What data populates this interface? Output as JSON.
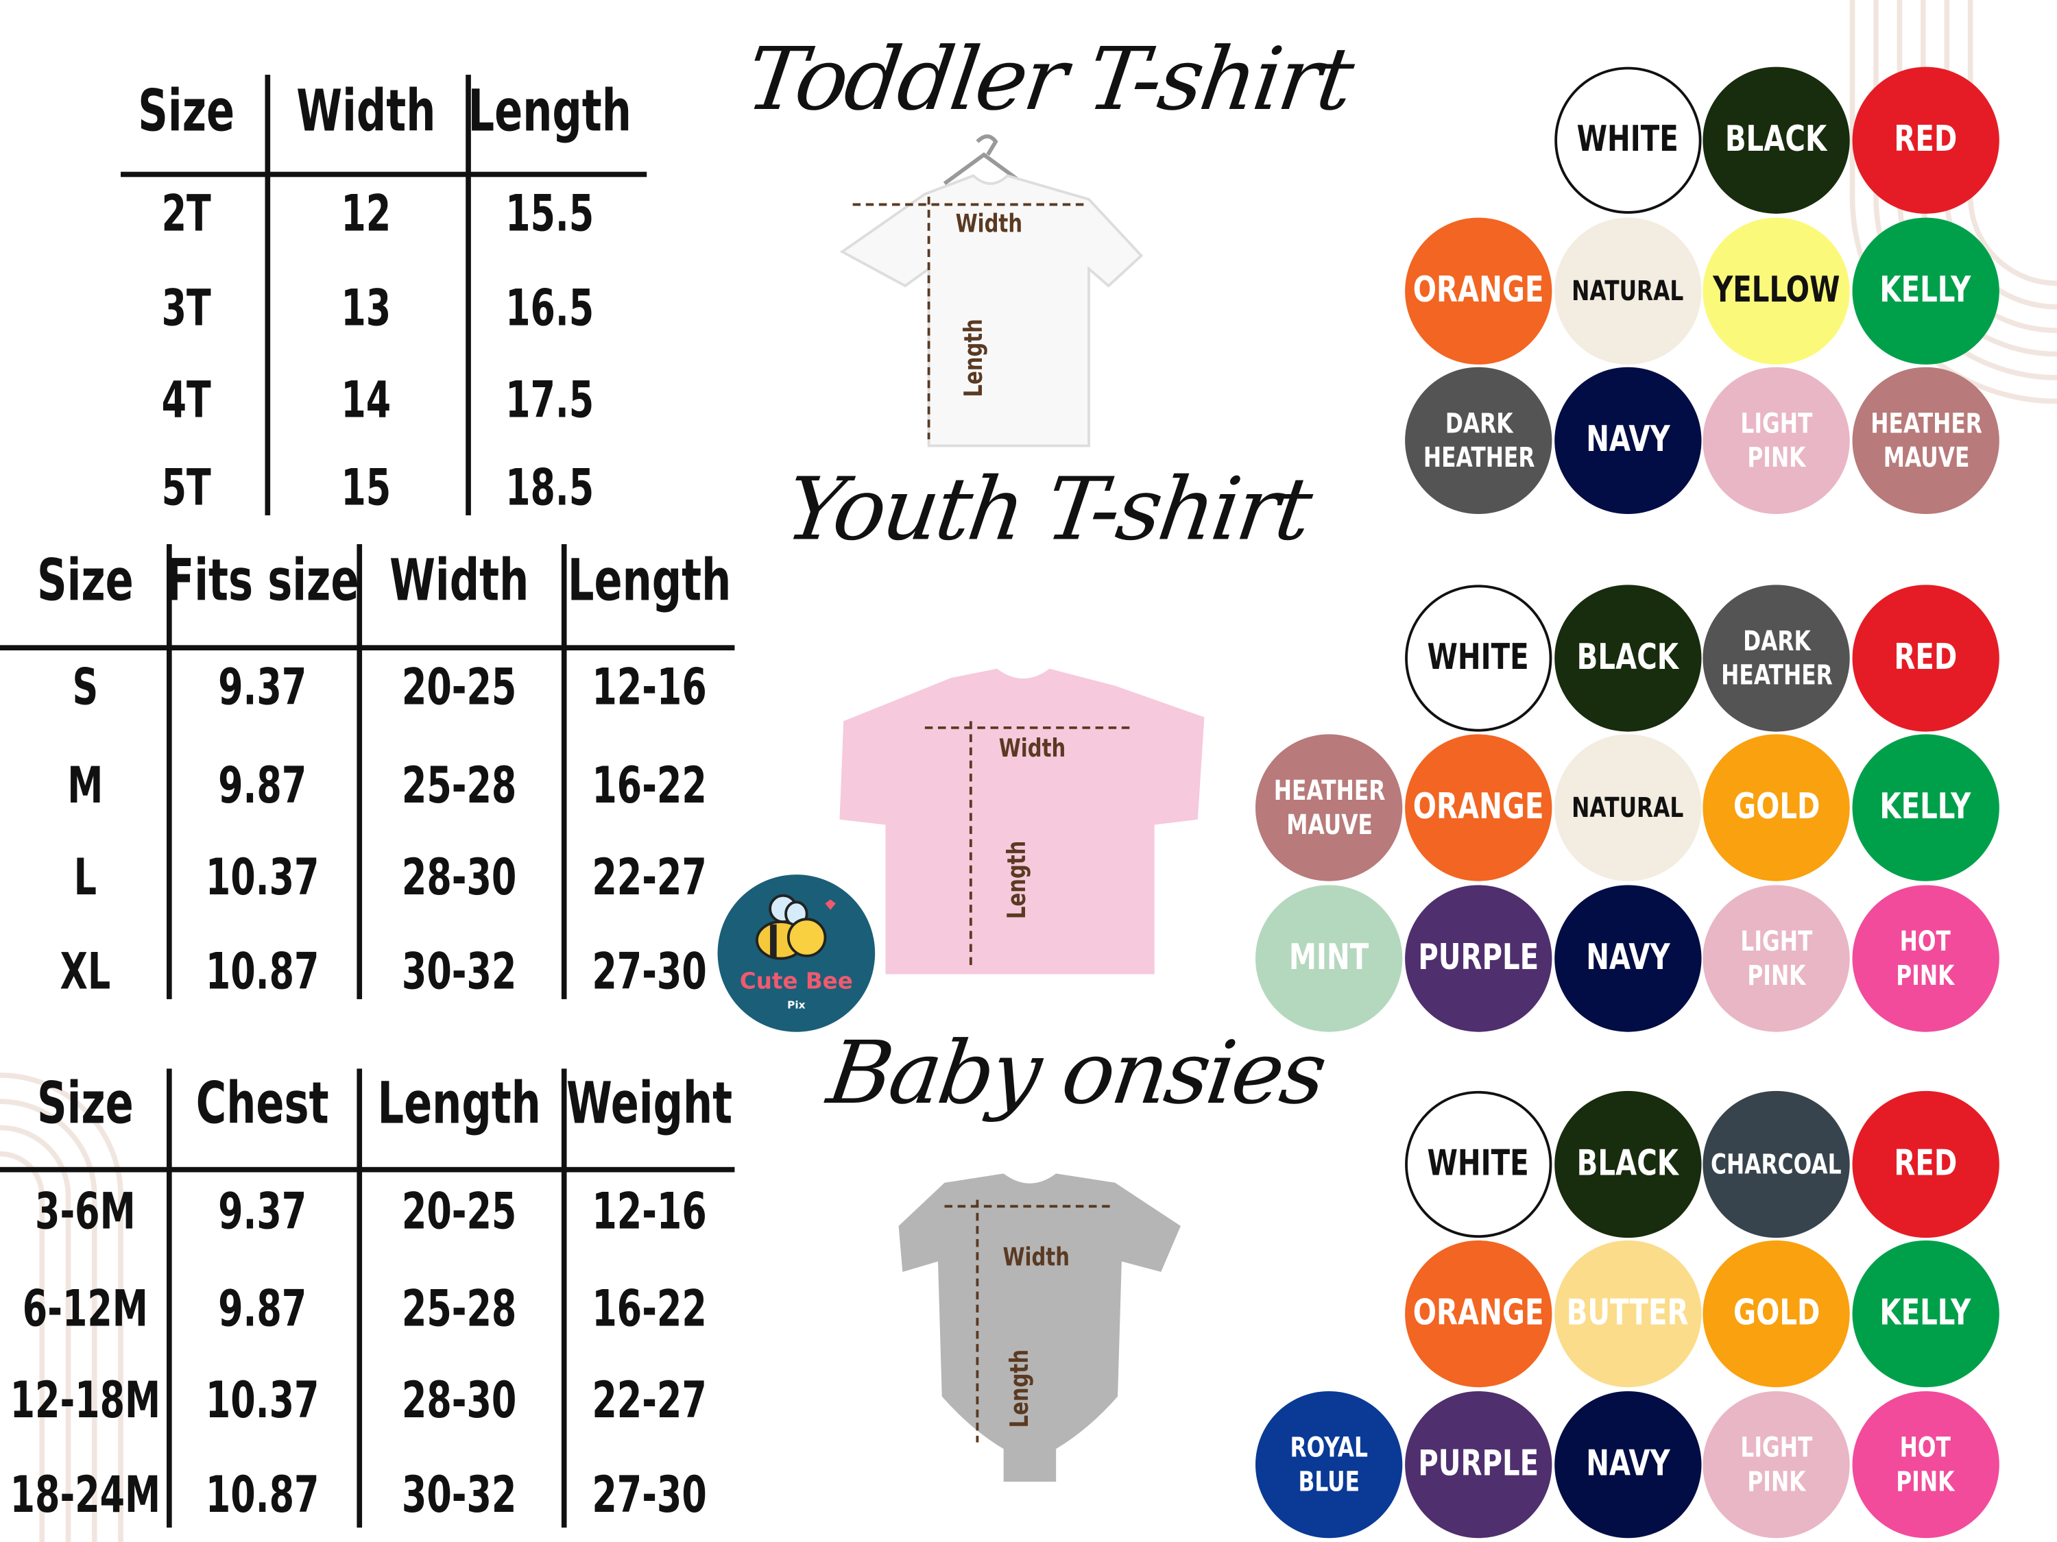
{
  "tables": [
    {
      "id": "toddler",
      "headers": [
        "Size",
        "Width",
        "Length"
      ],
      "rows": [
        [
          "2T",
          "12",
          "15.5"
        ],
        [
          "3T",
          "13",
          "16.5"
        ],
        [
          "4T",
          "14",
          "17.5"
        ],
        [
          "5T",
          "15",
          "18.5"
        ]
      ]
    },
    {
      "id": "youth",
      "headers": [
        "Size",
        "Fits size",
        "Width",
        "Length"
      ],
      "rows": [
        [
          "S",
          "9.37",
          "20-25",
          "12-16"
        ],
        [
          "M",
          "9.87",
          "25-28",
          "16-22"
        ],
        [
          "L",
          "10.37",
          "28-30",
          "22-27"
        ],
        [
          "XL",
          "10.87",
          "30-32",
          "27-30"
        ]
      ]
    },
    {
      "id": "baby",
      "headers": [
        "Size",
        "Chest",
        "Length",
        "Weight"
      ],
      "rows": [
        [
          "3-6M",
          "9.37",
          "20-25",
          "12-16"
        ],
        [
          "6-12M",
          "9.87",
          "25-28",
          "16-22"
        ],
        [
          "12-18M",
          "10.37",
          "28-30",
          "22-27"
        ],
        [
          "18-24M",
          "10.87",
          "30-32",
          "27-30"
        ]
      ]
    }
  ],
  "titles": {
    "toddler": "Toddler T-shirt",
    "youth": "Youth T-shirt",
    "baby": "Baby onsies"
  },
  "garment_labels": {
    "width": "Width",
    "length": "Length"
  },
  "logo": {
    "name": "Cute Bee",
    "sub": "Pix",
    "bg": "#1b5e78",
    "text_color": "#ef5a6f"
  },
  "palettes": [
    {
      "id": "toddler",
      "colors": [
        {
          "label": "WHITE",
          "bg": "#ffffff",
          "fg": "#111111",
          "border": "#111111"
        },
        {
          "label": "BLACK",
          "bg": "#182c0e",
          "fg": "#ffffff"
        },
        {
          "label": "RED",
          "bg": "#e51c26",
          "fg": "#ffffff"
        },
        {
          "label": "ORANGE",
          "bg": "#f26522",
          "fg": "#ffffff"
        },
        {
          "label": "NATURAL",
          "bg": "#f3ece0",
          "fg": "#111111"
        },
        {
          "label": "YELLOW",
          "bg": "#fbf97a",
          "fg": "#111111"
        },
        {
          "label": "KELLY",
          "bg": "#00a04b",
          "fg": "#ffffff"
        },
        {
          "label": "DARK\nHEATHER",
          "bg": "#545454",
          "fg": "#ffffff"
        },
        {
          "label": "NAVY",
          "bg": "#020d45",
          "fg": "#ffffff"
        },
        {
          "label": "LIGHT\nPINK",
          "bg": "#e9b6c6",
          "fg": "#ffffff"
        },
        {
          "label": "HEATHER\nMAUVE",
          "bg": "#b87a7a",
          "fg": "#ffffff"
        }
      ]
    },
    {
      "id": "youth",
      "colors": [
        {
          "label": "WHITE",
          "bg": "#ffffff",
          "fg": "#111111",
          "border": "#111111"
        },
        {
          "label": "BLACK",
          "bg": "#182c0e",
          "fg": "#ffffff"
        },
        {
          "label": "DARK\nHEATHER",
          "bg": "#545454",
          "fg": "#ffffff"
        },
        {
          "label": "RED",
          "bg": "#e51c26",
          "fg": "#ffffff"
        },
        {
          "label": "HEATHER\nMAUVE",
          "bg": "#b87a7a",
          "fg": "#ffffff"
        },
        {
          "label": "ORANGE",
          "bg": "#f26522",
          "fg": "#ffffff"
        },
        {
          "label": "NATURAL",
          "bg": "#f3ece0",
          "fg": "#111111"
        },
        {
          "label": "GOLD",
          "bg": "#f9a10f",
          "fg": "#ffffff"
        },
        {
          "label": "KELLY",
          "bg": "#00a04b",
          "fg": "#ffffff"
        },
        {
          "label": "MINT",
          "bg": "#b4d8be",
          "fg": "#ffffff"
        },
        {
          "label": "PURPLE",
          "bg": "#4f2f6e",
          "fg": "#ffffff"
        },
        {
          "label": "NAVY",
          "bg": "#020d45",
          "fg": "#ffffff"
        },
        {
          "label": "LIGHT\nPINK",
          "bg": "#e9b6c6",
          "fg": "#ffffff"
        },
        {
          "label": "HOT\nPINK",
          "bg": "#f24b9b",
          "fg": "#ffffff"
        }
      ]
    },
    {
      "id": "baby",
      "colors": [
        {
          "label": "WHITE",
          "bg": "#ffffff",
          "fg": "#111111",
          "border": "#111111"
        },
        {
          "label": "BLACK",
          "bg": "#182c0e",
          "fg": "#ffffff"
        },
        {
          "label": "CHARCOAL",
          "bg": "#37444d",
          "fg": "#ffffff"
        },
        {
          "label": "RED",
          "bg": "#e51c26",
          "fg": "#ffffff"
        },
        {
          "label": "ORANGE",
          "bg": "#f26522",
          "fg": "#ffffff"
        },
        {
          "label": "BUTTER",
          "bg": "#fadc8b",
          "fg": "#ffffff"
        },
        {
          "label": "GOLD",
          "bg": "#f9a10f",
          "fg": "#ffffff"
        },
        {
          "label": "KELLY",
          "bg": "#00a04b",
          "fg": "#ffffff"
        },
        {
          "label": "ROYAL\nBLUE",
          "bg": "#0a3a96",
          "fg": "#ffffff"
        },
        {
          "label": "PURPLE",
          "bg": "#4f2f6e",
          "fg": "#ffffff"
        },
        {
          "label": "NAVY",
          "bg": "#020d45",
          "fg": "#ffffff"
        },
        {
          "label": "LIGHT\nPINK",
          "bg": "#e9b6c6",
          "fg": "#ffffff"
        },
        {
          "label": "HOT\nPINK",
          "bg": "#f24b9b",
          "fg": "#ffffff"
        }
      ]
    }
  ]
}
